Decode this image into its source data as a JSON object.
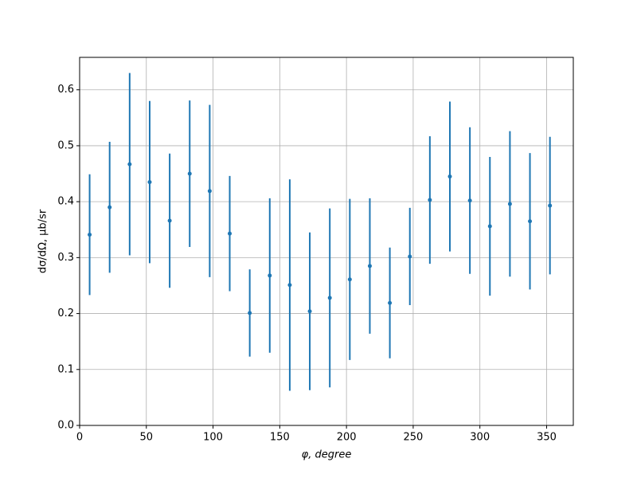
{
  "chart_data": {
    "type": "scatter",
    "x_label": "φ, degree",
    "y_label": "dσ/dΩ, μb/sr",
    "x": [
      7.5,
      22.5,
      37.5,
      52.5,
      67.5,
      82.5,
      97.5,
      112.5,
      127.5,
      142.5,
      157.5,
      172.5,
      187.5,
      202.5,
      217.5,
      232.5,
      247.5,
      262.5,
      277.5,
      292.5,
      307.5,
      322.5,
      337.5,
      352.5
    ],
    "series": [
      {
        "color": "#1f77b4",
        "values": [
          0.341,
          0.39,
          0.467,
          0.435,
          0.366,
          0.45,
          0.419,
          0.343,
          0.201,
          0.268,
          0.251,
          0.204,
          0.228,
          0.261,
          0.285,
          0.219,
          0.302,
          0.403,
          0.445,
          0.402,
          0.356,
          0.396,
          0.365,
          0.393
        ],
        "errors": [
          0.108,
          0.117,
          0.163,
          0.145,
          0.12,
          0.131,
          0.154,
          0.103,
          0.078,
          0.138,
          0.189,
          0.141,
          0.16,
          0.144,
          0.121,
          0.099,
          0.087,
          0.114,
          0.134,
          0.131,
          0.124,
          0.13,
          0.122,
          0.123
        ]
      }
    ],
    "xlim": [
      0,
      370
    ],
    "xticks": [
      0,
      50,
      100,
      150,
      200,
      250,
      300,
      350
    ],
    "ylim": [
      0,
      0.658
    ],
    "yticks": [
      {
        "value": 0,
        "label": "0.0"
      },
      0.1,
      0.2,
      0.3,
      0.4,
      0.5,
      0.6
    ],
    "grid": true
  }
}
